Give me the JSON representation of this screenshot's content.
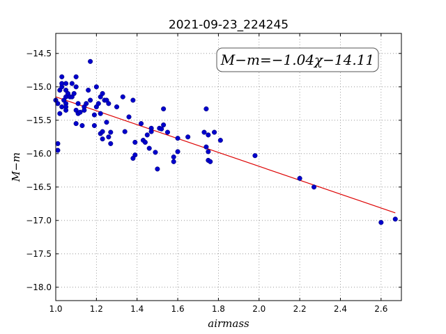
{
  "chart_data": {
    "type": "scatter",
    "title": "2021-09-23_224245",
    "xlabel": "airmass",
    "ylabel": "M−m",
    "xlim": [
      1.0,
      2.7
    ],
    "ylim": [
      -18.2,
      -14.2
    ],
    "y_inverted": true,
    "grid": true,
    "xticks": [
      "1.0",
      "1.2",
      "1.4",
      "1.6",
      "1.8",
      "2.0",
      "2.2",
      "2.4",
      "2.6"
    ],
    "yticks": [
      "−14.5",
      "−15.0",
      "−15.5",
      "−16.0",
      "−16.5",
      "−17.0",
      "−17.5",
      "−18.0"
    ],
    "points_color": "#0000cc",
    "fit_color": "#dd0000",
    "fit_annotation": "M−m=−1.04χ−14.11",
    "fit": {
      "slope": -1.04,
      "intercept": -14.11,
      "x_range": [
        1.0,
        2.67
      ]
    },
    "points": [
      [
        1.0,
        -15.2
      ],
      [
        1.01,
        -15.25
      ],
      [
        1.01,
        -15.85
      ],
      [
        1.01,
        -15.95
      ],
      [
        1.02,
        -15.4
      ],
      [
        1.02,
        -15.05
      ],
      [
        1.03,
        -15.0
      ],
      [
        1.03,
        -14.95
      ],
      [
        1.03,
        -14.85
      ],
      [
        1.03,
        -15.3
      ],
      [
        1.04,
        -15.2
      ],
      [
        1.05,
        -15.05
      ],
      [
        1.05,
        -14.95
      ],
      [
        1.05,
        -15.15
      ],
      [
        1.05,
        -15.25
      ],
      [
        1.05,
        -15.3
      ],
      [
        1.05,
        -15.35
      ],
      [
        1.06,
        -15.1
      ],
      [
        1.07,
        -15.15
      ],
      [
        1.08,
        -15.15
      ],
      [
        1.08,
        -14.95
      ],
      [
        1.09,
        -15.1
      ],
      [
        1.1,
        -14.85
      ],
      [
        1.1,
        -15.0
      ],
      [
        1.1,
        -15.35
      ],
      [
        1.1,
        -15.55
      ],
      [
        1.11,
        -15.25
      ],
      [
        1.11,
        -15.4
      ],
      [
        1.12,
        -15.38
      ],
      [
        1.13,
        -15.58
      ],
      [
        1.14,
        -15.3
      ],
      [
        1.14,
        -15.35
      ],
      [
        1.15,
        -15.25
      ],
      [
        1.16,
        -15.05
      ],
      [
        1.17,
        -15.2
      ],
      [
        1.17,
        -14.62
      ],
      [
        1.19,
        -15.42
      ],
      [
        1.19,
        -15.58
      ],
      [
        1.2,
        -15.0
      ],
      [
        1.2,
        -15.3
      ],
      [
        1.21,
        -15.25
      ],
      [
        1.22,
        -15.4
      ],
      [
        1.22,
        -15.15
      ],
      [
        1.22,
        -15.7
      ],
      [
        1.23,
        -15.1
      ],
      [
        1.23,
        -15.67
      ],
      [
        1.23,
        -15.78
      ],
      [
        1.24,
        -15.2
      ],
      [
        1.25,
        -15.2
      ],
      [
        1.25,
        -15.53
      ],
      [
        1.26,
        -15.25
      ],
      [
        1.26,
        -15.75
      ],
      [
        1.27,
        -15.68
      ],
      [
        1.27,
        -15.85
      ],
      [
        1.3,
        -15.3
      ],
      [
        1.33,
        -15.15
      ],
      [
        1.34,
        -15.67
      ],
      [
        1.36,
        -15.45
      ],
      [
        1.38,
        -15.2
      ],
      [
        1.38,
        -16.07
      ],
      [
        1.39,
        -15.83
      ],
      [
        1.39,
        -16.02
      ],
      [
        1.42,
        -15.55
      ],
      [
        1.43,
        -15.8
      ],
      [
        1.44,
        -15.83
      ],
      [
        1.45,
        -15.72
      ],
      [
        1.46,
        -15.92
      ],
      [
        1.47,
        -15.62
      ],
      [
        1.47,
        -15.67
      ],
      [
        1.49,
        -15.98
      ],
      [
        1.5,
        -16.23
      ],
      [
        1.51,
        -15.62
      ],
      [
        1.52,
        -15.63
      ],
      [
        1.53,
        -15.57
      ],
      [
        1.53,
        -15.33
      ],
      [
        1.55,
        -15.68
      ],
      [
        1.58,
        -16.05
      ],
      [
        1.58,
        -16.12
      ],
      [
        1.6,
        -15.77
      ],
      [
        1.6,
        -15.97
      ],
      [
        1.65,
        -15.75
      ],
      [
        1.73,
        -15.68
      ],
      [
        1.74,
        -15.33
      ],
      [
        1.74,
        -15.9
      ],
      [
        1.75,
        -15.72
      ],
      [
        1.75,
        -15.97
      ],
      [
        1.75,
        -16.1
      ],
      [
        1.76,
        -16.12
      ],
      [
        1.78,
        -15.68
      ],
      [
        1.81,
        -15.8
      ],
      [
        1.98,
        -16.03
      ],
      [
        2.2,
        -16.37
      ],
      [
        2.27,
        -16.5
      ],
      [
        2.6,
        -17.03
      ],
      [
        2.67,
        -16.98
      ]
    ]
  }
}
